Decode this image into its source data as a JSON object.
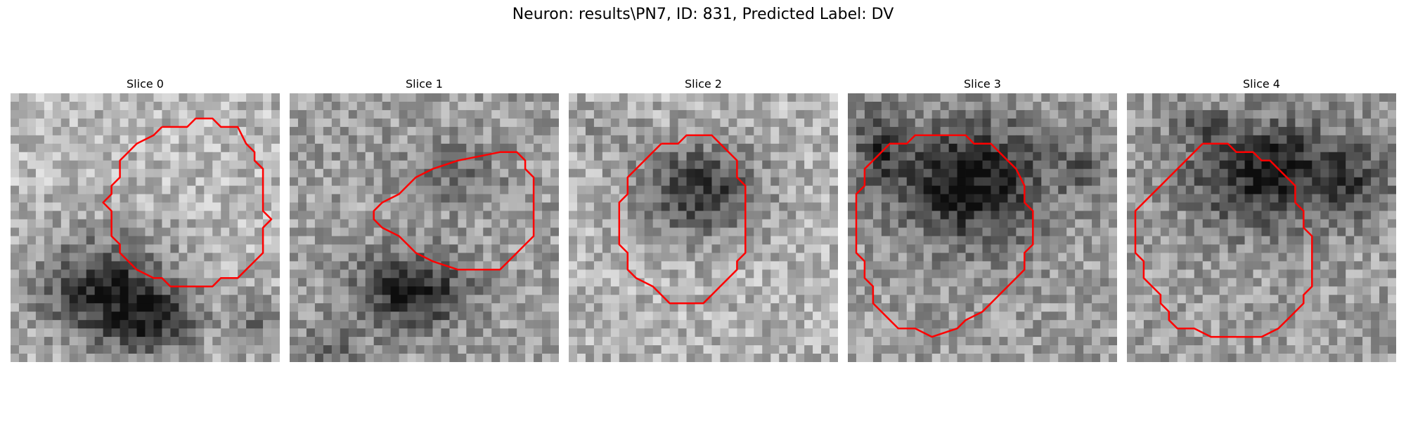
{
  "figure": {
    "title": "Neuron: results\\PN7, ID: 831, Predicted Label: DV"
  },
  "panels": [
    {
      "title": "Slice 0"
    },
    {
      "title": "Slice 1"
    },
    {
      "title": "Slice 2"
    },
    {
      "title": "Slice 3"
    },
    {
      "title": "Slice 4"
    }
  ],
  "colors": {
    "contour": "#ff0000",
    "background": "#ffffff"
  }
}
